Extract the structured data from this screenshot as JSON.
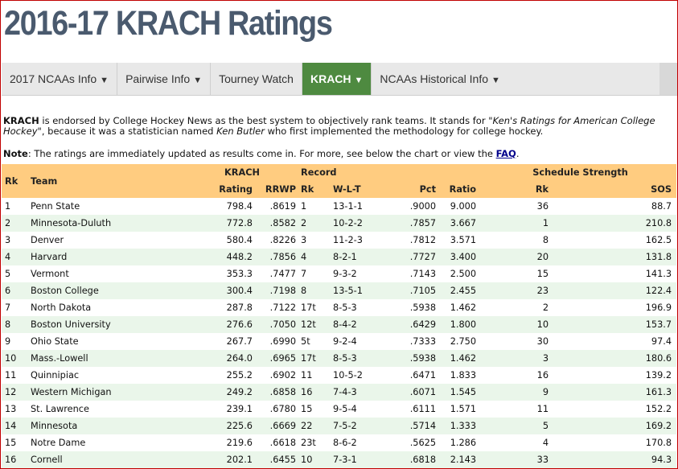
{
  "page": {
    "title": "2016-17 KRACH Ratings"
  },
  "nav": {
    "items": [
      {
        "label": "2017 NCAAs Info",
        "caret": "▼"
      },
      {
        "label": "Pairwise Info",
        "caret": "▼"
      },
      {
        "label": "Tourney Watch",
        "caret": ""
      },
      {
        "label": "KRACH",
        "caret": "▼"
      },
      {
        "label": "NCAAs Historical Info",
        "caret": "▼"
      }
    ],
    "active": "KRACH",
    "active_color": "#4e8a40"
  },
  "intro": {
    "bold": "KRACH",
    "text1": " is endorsed by College Hockey News as the best system to objectively rank teams. It stands for ",
    "italic1": "\"Ken's Ratings for American College Hockey\"",
    "text2": ", because it was a statistician named ",
    "italic2": "Ken Butler",
    "text3": " who first implemented the methodology for college hockey."
  },
  "note": {
    "label": "Note",
    "text": ": The ratings are immediately updated as results come in. For more, see below the chart or view the ",
    "link": "FAQ",
    "end": "."
  },
  "table": {
    "header_color": "#ffcc80",
    "group_headers": {
      "rk": "Rk",
      "team": "Team",
      "krach": "KRACH",
      "record": "Record",
      "schedule": "Schedule Strength"
    },
    "sub_headers": {
      "rating": "Rating",
      "rrwp": "RRWP",
      "rk": "Rk",
      "wlt": "W-L-T",
      "pct": "Pct",
      "ratio": "Ratio",
      "sos_rk": "Rk",
      "sos": "SOS"
    },
    "rows": [
      {
        "rk": "1",
        "team": "Penn State",
        "rating": "798.4",
        "rrwp": ".8619",
        "rec_rk": "1",
        "wlt": "13-1-1",
        "pct": ".9000",
        "ratio": "9.000",
        "sos_rk": "36",
        "sos": "88.7"
      },
      {
        "rk": "2",
        "team": "Minnesota-Duluth",
        "rating": "772.8",
        "rrwp": ".8582",
        "rec_rk": "2",
        "wlt": "10-2-2",
        "pct": ".7857",
        "ratio": "3.667",
        "sos_rk": "1",
        "sos": "210.8"
      },
      {
        "rk": "3",
        "team": "Denver",
        "rating": "580.4",
        "rrwp": ".8226",
        "rec_rk": "3",
        "wlt": "11-2-3",
        "pct": ".7812",
        "ratio": "3.571",
        "sos_rk": "8",
        "sos": "162.5"
      },
      {
        "rk": "4",
        "team": "Harvard",
        "rating": "448.2",
        "rrwp": ".7856",
        "rec_rk": "4",
        "wlt": "8-2-1",
        "pct": ".7727",
        "ratio": "3.400",
        "sos_rk": "20",
        "sos": "131.8"
      },
      {
        "rk": "5",
        "team": "Vermont",
        "rating": "353.3",
        "rrwp": ".7477",
        "rec_rk": "7",
        "wlt": "9-3-2",
        "pct": ".7143",
        "ratio": "2.500",
        "sos_rk": "15",
        "sos": "141.3"
      },
      {
        "rk": "6",
        "team": "Boston College",
        "rating": "300.4",
        "rrwp": ".7198",
        "rec_rk": "8",
        "wlt": "13-5-1",
        "pct": ".7105",
        "ratio": "2.455",
        "sos_rk": "23",
        "sos": "122.4"
      },
      {
        "rk": "7",
        "team": "North Dakota",
        "rating": "287.8",
        "rrwp": ".7122",
        "rec_rk": "17t",
        "wlt": "8-5-3",
        "pct": ".5938",
        "ratio": "1.462",
        "sos_rk": "2",
        "sos": "196.9"
      },
      {
        "rk": "8",
        "team": "Boston University",
        "rating": "276.6",
        "rrwp": ".7050",
        "rec_rk": "12t",
        "wlt": "8-4-2",
        "pct": ".6429",
        "ratio": "1.800",
        "sos_rk": "10",
        "sos": "153.7"
      },
      {
        "rk": "9",
        "team": "Ohio State",
        "rating": "267.7",
        "rrwp": ".6990",
        "rec_rk": "5t",
        "wlt": "9-2-4",
        "pct": ".7333",
        "ratio": "2.750",
        "sos_rk": "30",
        "sos": "97.4"
      },
      {
        "rk": "10",
        "team": "Mass.-Lowell",
        "rating": "264.0",
        "rrwp": ".6965",
        "rec_rk": "17t",
        "wlt": "8-5-3",
        "pct": ".5938",
        "ratio": "1.462",
        "sos_rk": "3",
        "sos": "180.6"
      },
      {
        "rk": "11",
        "team": "Quinnipiac",
        "rating": "255.2",
        "rrwp": ".6902",
        "rec_rk": "11",
        "wlt": "10-5-2",
        "pct": ".6471",
        "ratio": "1.833",
        "sos_rk": "16",
        "sos": "139.2"
      },
      {
        "rk": "12",
        "team": "Western Michigan",
        "rating": "249.2",
        "rrwp": ".6858",
        "rec_rk": "16",
        "wlt": "7-4-3",
        "pct": ".6071",
        "ratio": "1.545",
        "sos_rk": "9",
        "sos": "161.3"
      },
      {
        "rk": "13",
        "team": "St. Lawrence",
        "rating": "239.1",
        "rrwp": ".6780",
        "rec_rk": "15",
        "wlt": "9-5-4",
        "pct": ".6111",
        "ratio": "1.571",
        "sos_rk": "11",
        "sos": "152.2"
      },
      {
        "rk": "14",
        "team": "Minnesota",
        "rating": "225.6",
        "rrwp": ".6669",
        "rec_rk": "22",
        "wlt": "7-5-2",
        "pct": ".5714",
        "ratio": "1.333",
        "sos_rk": "5",
        "sos": "169.2"
      },
      {
        "rk": "15",
        "team": "Notre Dame",
        "rating": "219.6",
        "rrwp": ".6618",
        "rec_rk": "23t",
        "wlt": "8-6-2",
        "pct": ".5625",
        "ratio": "1.286",
        "sos_rk": "4",
        "sos": "170.8"
      },
      {
        "rk": "16",
        "team": "Cornell",
        "rating": "202.1",
        "rrwp": ".6455",
        "rec_rk": "10",
        "wlt": "7-3-1",
        "pct": ".6818",
        "ratio": "2.143",
        "sos_rk": "33",
        "sos": "94.3"
      }
    ]
  }
}
